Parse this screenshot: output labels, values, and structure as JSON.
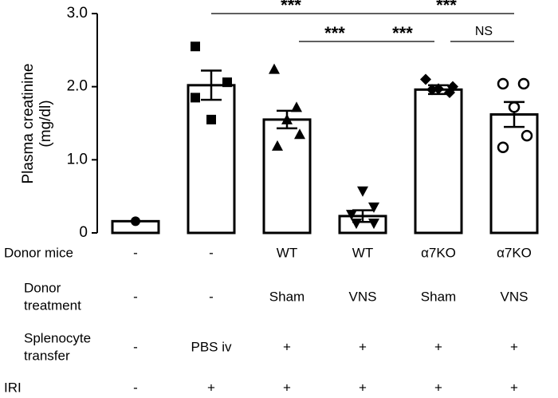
{
  "chart_data": {
    "type": "bar",
    "y_label": [
      "Plasma creatinine",
      "(mg/dl)"
    ],
    "ylim": [
      0,
      3
    ],
    "yticks": [
      0,
      {
        "value": 1,
        "label": "1.0"
      },
      {
        "value": 2,
        "label": "2.0"
      },
      {
        "value": 3,
        "label": "3.0"
      }
    ],
    "values": [
      0.16,
      2.02,
      1.55,
      0.23,
      1.96,
      1.62
    ],
    "errors": [
      null,
      0.2,
      0.12,
      0.08,
      0.06,
      0.17
    ],
    "points": [
      [
        0.16
      ],
      [
        2.55,
        2.06,
        1.85,
        1.55
      ],
      [
        2.24,
        1.72,
        1.55,
        1.35,
        1.19
      ],
      [
        0.57,
        0.35,
        0.25,
        0.13,
        0.13
      ],
      [
        2.1,
        2.0,
        1.97,
        1.92,
        1.96
      ],
      [
        2.04,
        2.04,
        1.72,
        1.33,
        1.17
      ]
    ],
    "markers": [
      "circle",
      "square",
      "triangle",
      "triangle-down",
      "diamond",
      "circle-open"
    ],
    "color": "#000000",
    "annotations": [
      "***",
      "***",
      "***",
      "***",
      "NS"
    ],
    "table": [
      {
        "label": [
          "Donor mice"
        ],
        "cells": [
          "-",
          "-",
          "WT",
          "WT",
          "α7KO",
          "α7KO"
        ]
      },
      {
        "label": [
          "Donor",
          "treatment"
        ],
        "cells": [
          "-",
          "-",
          "Sham",
          "VNS",
          "Sham",
          "VNS"
        ]
      },
      {
        "label": [
          "Splenocyte",
          "transfer"
        ],
        "cells": [
          "-",
          "PBS iv",
          "+",
          "+",
          "+",
          "+"
        ]
      },
      {
        "label": [
          "IRI"
        ],
        "cells": [
          "-",
          "+",
          "+",
          "+",
          "+",
          "+"
        ]
      }
    ]
  }
}
